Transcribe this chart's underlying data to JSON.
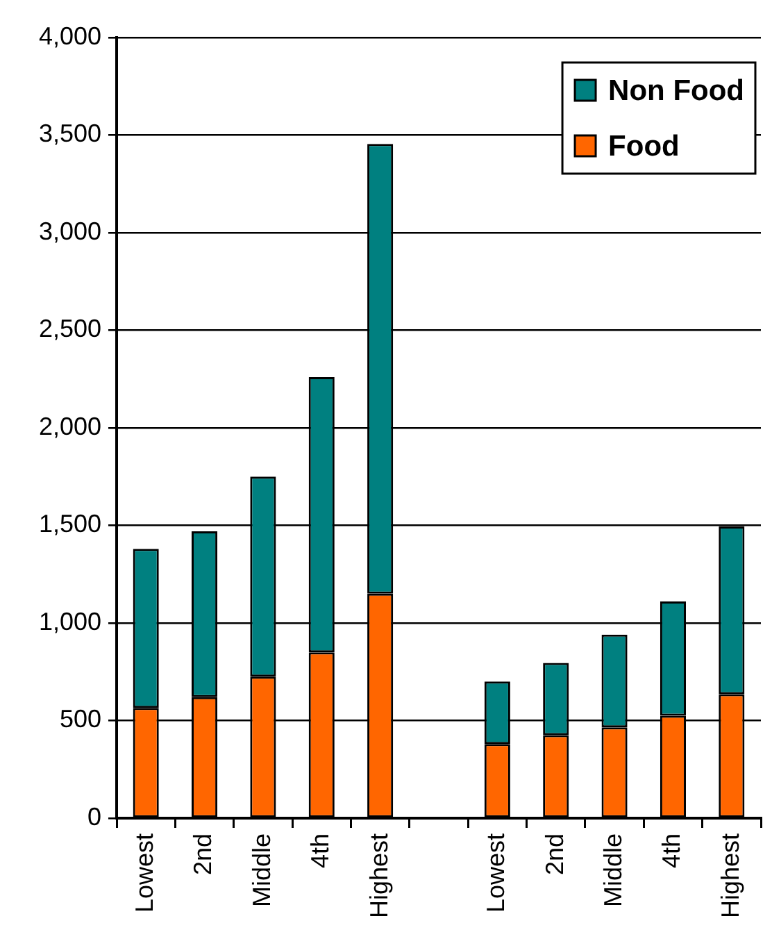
{
  "chart_data": {
    "type": "bar",
    "categories": [
      "Lowest",
      "2nd",
      "Middle",
      "4th",
      "Highest",
      null,
      "Lowest",
      "2nd",
      "Middle",
      "4th",
      "Highest"
    ],
    "series": [
      {
        "name": "Food",
        "color": "#ff6600",
        "values": [
          565,
          620,
          725,
          850,
          1150,
          null,
          380,
          425,
          465,
          525,
          635
        ]
      },
      {
        "name": "Non Food",
        "color": "#008080",
        "values": [
          815,
          850,
          1025,
          1410,
          2305,
          null,
          320,
          370,
          475,
          585,
          860
        ]
      }
    ],
    "stacked": true,
    "ylim": [
      0,
      4000
    ],
    "yticks": [
      0,
      500,
      {
        "value": 1000,
        "label": "1,000"
      },
      {
        "value": 1500,
        "label": "1,500"
      },
      {
        "value": 2000,
        "label": "2,000"
      },
      {
        "value": 2500,
        "label": "2,500"
      },
      {
        "value": 3000,
        "label": "3,000"
      },
      {
        "value": 3500,
        "label": "3,500"
      },
      {
        "value": 4000,
        "label": "4,000"
      }
    ],
    "grid": "y",
    "legend": "top right"
  }
}
